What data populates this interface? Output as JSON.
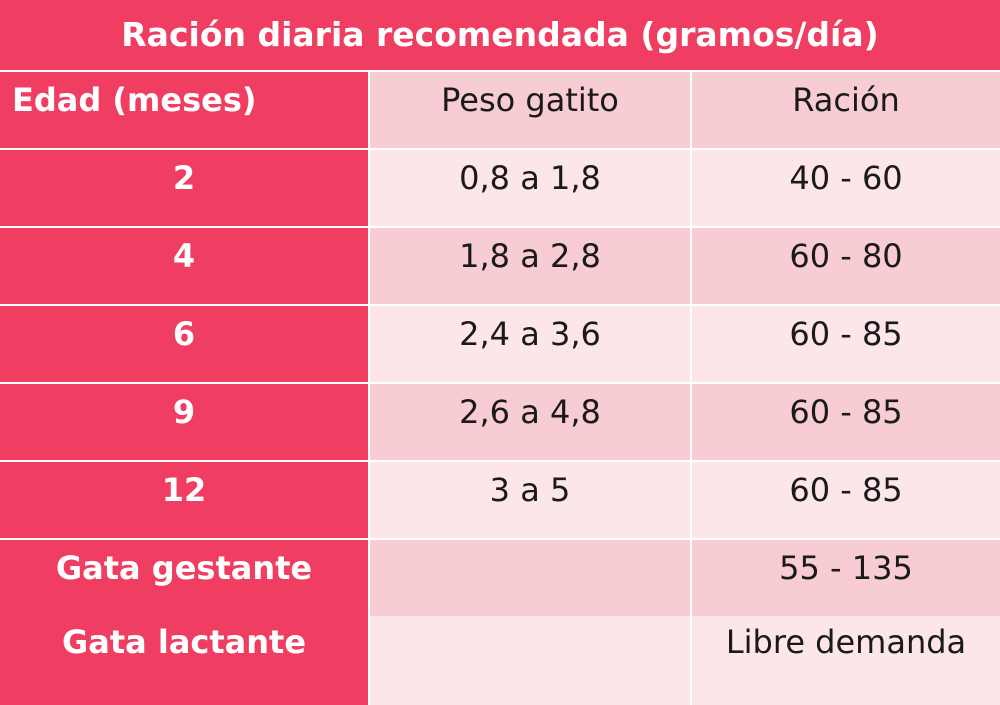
{
  "title": "Ración diaria recomendada (gramos/día)",
  "columns": [
    "Edad (meses)",
    "Peso gatito",
    "Ración"
  ],
  "rows": [
    {
      "age": "2",
      "weight": "0,8 a 1,8",
      "ration": "40 - 60"
    },
    {
      "age": "4",
      "weight": "1,8 a 2,8",
      "ration": "60 - 80"
    },
    {
      "age": "6",
      "weight": "2,4 a 3,6",
      "ration": "60 - 85"
    },
    {
      "age": "9",
      "weight": "2,6 a 4,8",
      "ration": "60 - 85"
    },
    {
      "age": "12",
      "weight": "3 a 5",
      "ration": "60 - 85"
    },
    {
      "age": "Gata gestante",
      "weight": "",
      "ration": "55 - 135"
    },
    {
      "age": "Gata lactante",
      "weight": "",
      "ration": "Libre demanda"
    }
  ],
  "colors": {
    "header": "#ef3e62",
    "row_dark": "#f7ccd3",
    "row_light": "#fce6e9"
  }
}
